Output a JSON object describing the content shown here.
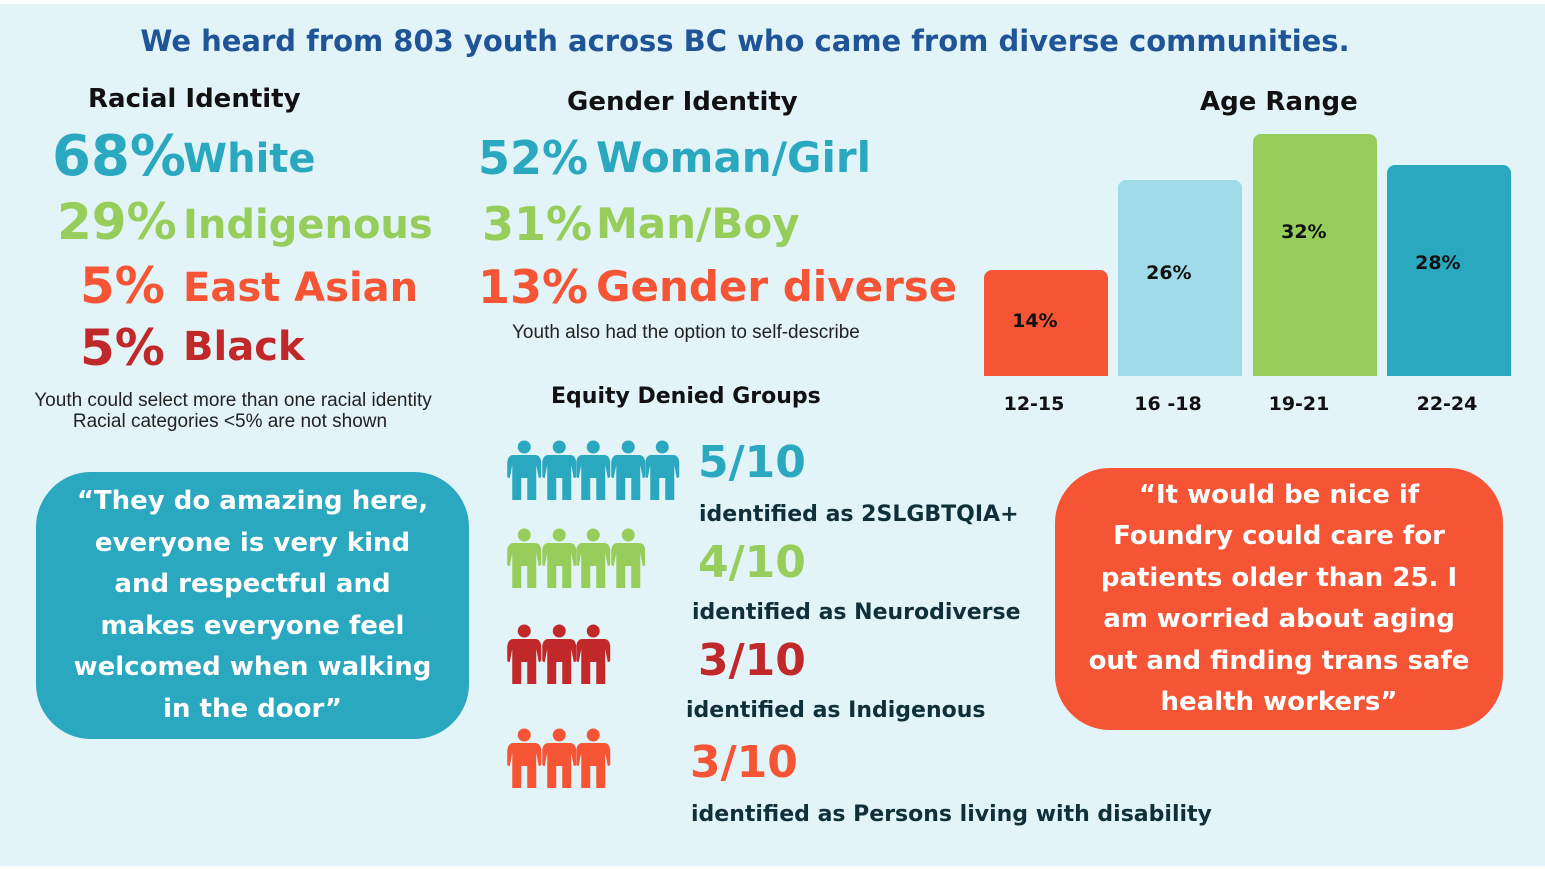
{
  "title": "We heard from 803 youth across BC who came from diverse communities.",
  "colors": {
    "background": "#e2f4f8",
    "title": "#1f5597",
    "teal": "#2aa8bf",
    "green": "#97cd5a",
    "orange": "#f55535",
    "red": "#c0282a",
    "light_blue": "#a0dbea"
  },
  "racial": {
    "heading": "Racial Identity",
    "items": [
      {
        "pct": "68%",
        "label": "White",
        "color": "#2aa8bf"
      },
      {
        "pct": "29%",
        "label": "Indigenous",
        "color": "#97cd5a"
      },
      {
        "pct": "5%",
        "label": "East Asian",
        "color": "#f55535"
      },
      {
        "pct": "5%",
        "label": "Black",
        "color": "#c0282a"
      }
    ],
    "note1": "Youth could select more than one racial identity",
    "note2": "Racial categories <5% are not shown"
  },
  "gender": {
    "heading": "Gender Identity",
    "items": [
      {
        "pct": "52%",
        "label": "Woman/Girl",
        "color": "#2aa8bf"
      },
      {
        "pct": "31%",
        "label": "Man/Boy",
        "color": "#97cd5a"
      },
      {
        "pct": "13%",
        "label": "Gender diverse",
        "color": "#f55535"
      }
    ],
    "note": "Youth also had the option to self-describe"
  },
  "equity": {
    "heading": "Equity Denied Groups",
    "items": [
      {
        "fraction": "5/10",
        "label": "identified as 2SLGBTQIA+",
        "count": 5,
        "color": "#2aa8bf",
        "icon": "person-icon"
      },
      {
        "fraction": "4/10",
        "label": "identified as Neurodiverse",
        "count": 4,
        "color": "#97cd5a",
        "icon": "person-icon"
      },
      {
        "fraction": "3/10",
        "label": "identified as Indigenous",
        "count": 3,
        "color": "#c0282a",
        "icon": "person-icon"
      },
      {
        "fraction": "3/10",
        "label": "identified as Persons living with disability",
        "count": 3,
        "color": "#f55535",
        "icon": "person-icon"
      }
    ]
  },
  "quotes": {
    "left": "“They do amazing here, everyone is very kind and respectful and makes everyone feel welcomed when walking in the door”",
    "right": "“It would be nice if Foundry could care for patients older than 25. I am worried about aging out and finding trans safe health workers”"
  },
  "chart_data": {
    "type": "bar",
    "title": "Age Range",
    "categories": [
      "12-15",
      "16 -18",
      "19-21",
      "22-24"
    ],
    "values": [
      14,
      26,
      32,
      28
    ],
    "data_labels": [
      "14%",
      "26%",
      "32%",
      "28%"
    ],
    "colors": [
      "#f55535",
      "#a0dbea",
      "#97cd5a",
      "#2aa8bf"
    ],
    "grid": false,
    "legend": "none"
  }
}
